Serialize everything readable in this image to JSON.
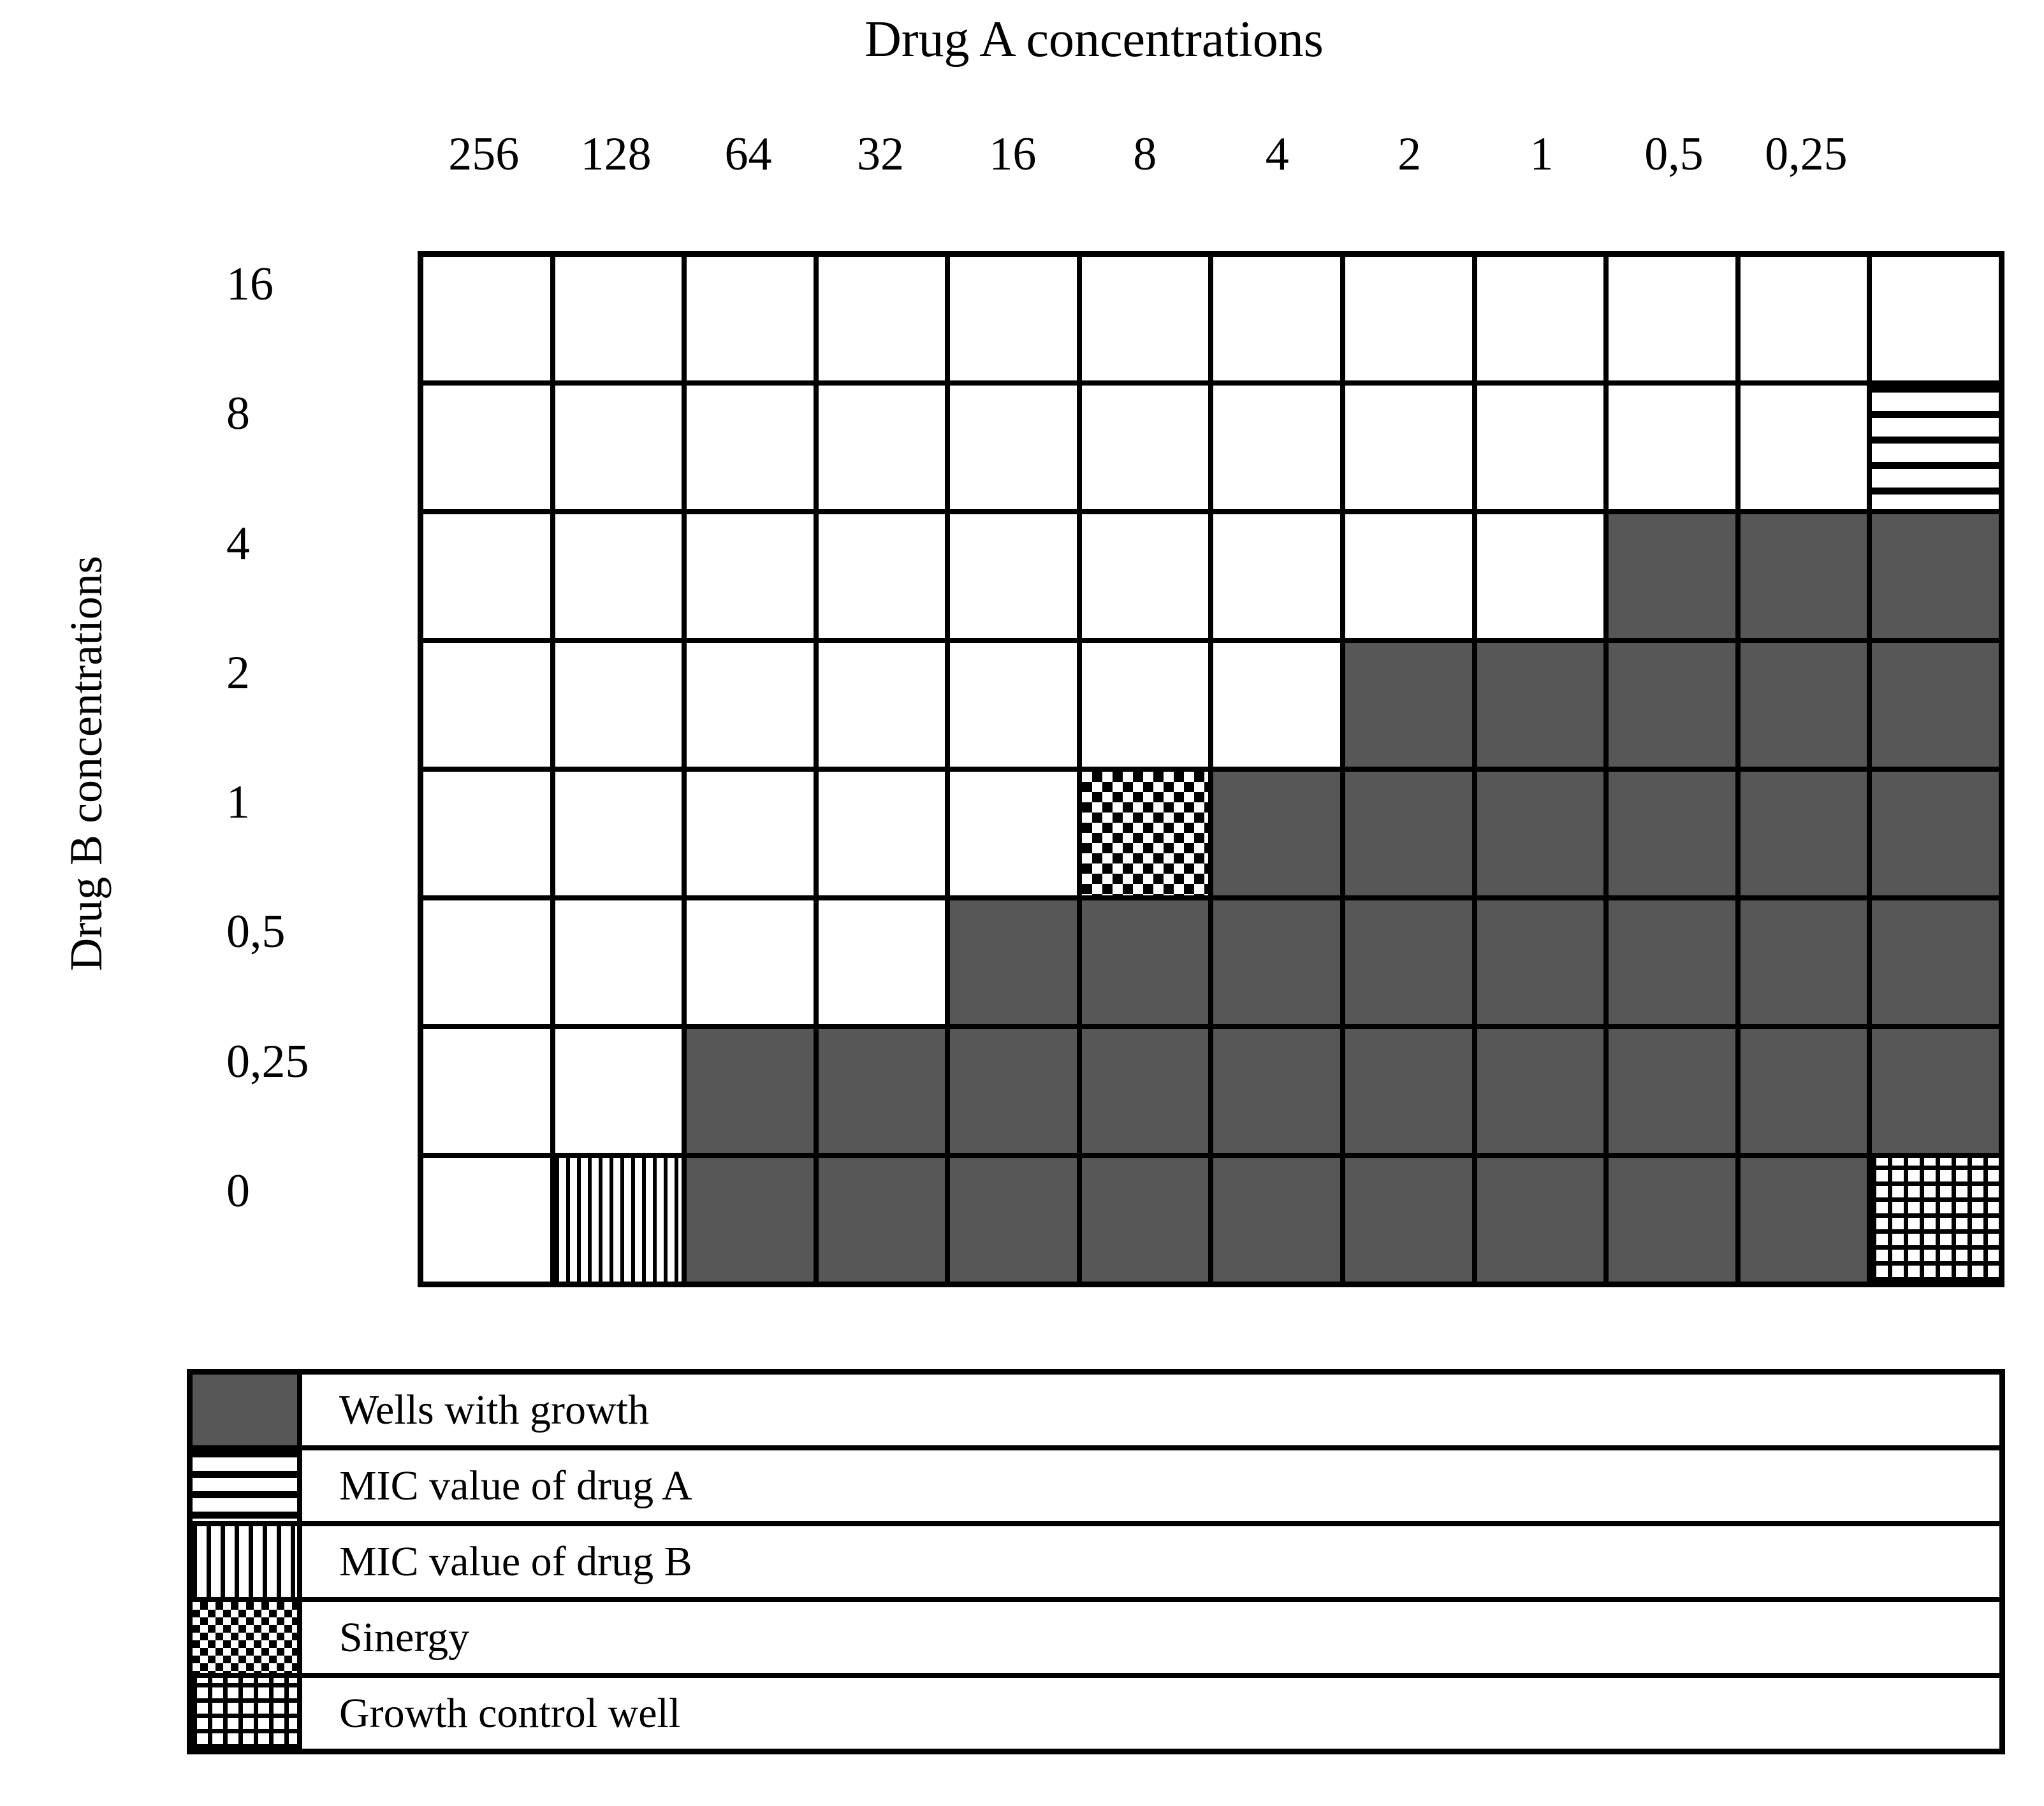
{
  "figure": {
    "background": "#ffffff",
    "line_color": "#000000",
    "growth_fill": "#575757"
  },
  "chart_data": {
    "type": "heatmap",
    "title": "Drug A concentrations",
    "xlabel": "Drug A concentrations",
    "ylabel": "Drug B concentrations",
    "x_tick_labels": [
      "256",
      "128",
      "64",
      "32",
      "16",
      "8",
      "4",
      "2",
      "1",
      "0,5",
      "0,25",
      ""
    ],
    "y_tick_labels": [
      "16",
      "8",
      "4",
      "2",
      "1",
      "0,5",
      "0,25",
      "0"
    ],
    "cell_pattern_meanings": {
      "empty": "white well (no growth)",
      "growth": "solid dark gray well",
      "mic_a": "horizontal stripes",
      "mic_b": "vertical stripes",
      "sinergy": "checkerboard",
      "control": "grid squares"
    },
    "cell_states": [
      [
        "empty",
        "empty",
        "empty",
        "empty",
        "empty",
        "empty",
        "empty",
        "empty",
        "empty",
        "empty",
        "empty",
        "empty"
      ],
      [
        "empty",
        "empty",
        "empty",
        "empty",
        "empty",
        "empty",
        "empty",
        "empty",
        "empty",
        "empty",
        "empty",
        "mic_a"
      ],
      [
        "empty",
        "empty",
        "empty",
        "empty",
        "empty",
        "empty",
        "empty",
        "empty",
        "empty",
        "growth",
        "growth",
        "growth"
      ],
      [
        "empty",
        "empty",
        "empty",
        "empty",
        "empty",
        "empty",
        "empty",
        "growth",
        "growth",
        "growth",
        "growth",
        "growth"
      ],
      [
        "empty",
        "empty",
        "empty",
        "empty",
        "empty",
        "sinergy",
        "growth",
        "growth",
        "growth",
        "growth",
        "growth",
        "growth"
      ],
      [
        "empty",
        "empty",
        "empty",
        "empty",
        "growth",
        "growth",
        "growth",
        "growth",
        "growth",
        "growth",
        "growth",
        "growth"
      ],
      [
        "empty",
        "empty",
        "growth",
        "growth",
        "growth",
        "growth",
        "growth",
        "growth",
        "growth",
        "growth",
        "growth",
        "growth"
      ],
      [
        "empty",
        "mic_b",
        "growth",
        "growth",
        "growth",
        "growth",
        "growth",
        "growth",
        "growth",
        "growth",
        "growth",
        "control"
      ]
    ],
    "grid_rows": 8,
    "grid_cols": 12,
    "grid_on": true,
    "legend_position": "bottom",
    "legend": [
      {
        "pattern": "growth",
        "label": "Wells with growth"
      },
      {
        "pattern": "mic_a",
        "label": "MIC value of drug A"
      },
      {
        "pattern": "mic_b",
        "label": "MIC value of drug B"
      },
      {
        "pattern": "sinergy",
        "label": "Sinergy"
      },
      {
        "pattern": "control",
        "label": "Growth control well"
      }
    ]
  }
}
